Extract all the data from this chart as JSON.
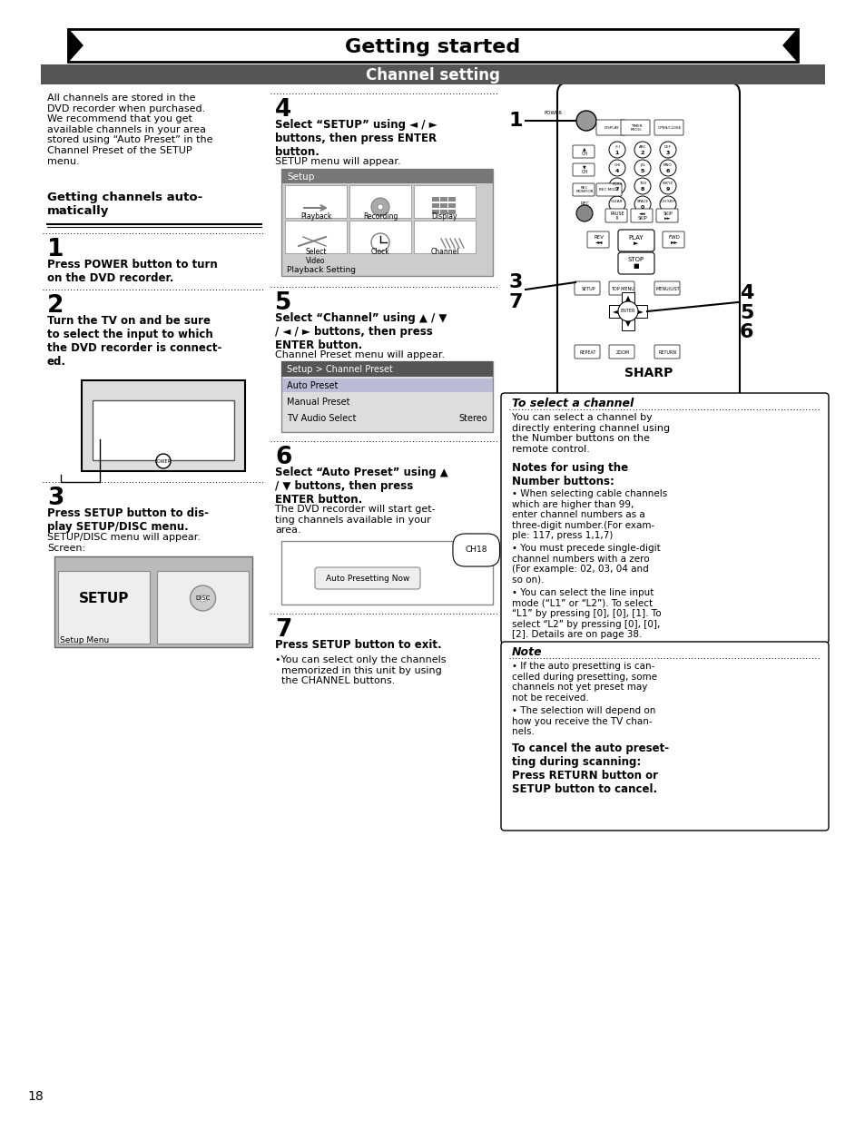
{
  "title": "Getting started",
  "subtitle": "Channel setting",
  "page_number": "18",
  "bg_color": "#ffffff",
  "header_bg": "#555555",
  "header_text_color": "#ffffff",
  "left_col_intro": "All channels are stored in the\nDVD recorder when purchased.\nWe recommend that you get\navailable channels in your area\nstored using “Auto Preset” in the\nChannel Preset of the SETUP\nmenu.",
  "getting_channels_title": "Getting channels auto-\nmatically",
  "step1_num": "1",
  "step1_text": "Press POWER button to turn\non the DVD recorder.",
  "step2_num": "2",
  "step2_text": "Turn the TV on and be sure\nto select the input to which\nthe DVD recorder is connect-\ned.",
  "step3_num": "3",
  "step3_text": "Press SETUP button to dis-\nplay SETUP/DISC menu.",
  "step3_sub": "SETUP/DISC menu will appear.\nScreen:",
  "step4_num": "4",
  "step4_text": "Select “SETUP” using ◄ / ►\nbuttons, then press ENTER\nbutton.",
  "step4_sub": "SETUP menu will appear.",
  "step5_num": "5",
  "step5_text": "Select “Channel” using ▲ / ▼\n/ ◄ / ► buttons, then press\nENTER button.",
  "step5_sub": "Channel Preset menu will appear.",
  "step6_num": "6",
  "step6_text": "Select “Auto Preset” using ▲\n/ ▼ buttons, then press\nENTER button.",
  "step6_sub": "The DVD recorder will start get-\nting channels available in your\narea.",
  "step7_num": "7",
  "step7_text": "Press SETUP button to exit.",
  "step7_sub": "•You can select only the channels\n  memorized in this unit by using\n  the CHANNEL buttons.",
  "select_channel_title": "To select a channel",
  "select_channel_text": "You can select a channel by\ndirectly entering channel using\nthe Number buttons on the\nremote control.",
  "notes_title": "Notes for using the\nNumber buttons:",
  "notes_bullets": [
    "When selecting cable channels\nwhich are higher than 99,\nenter channel numbers as a\nthree-digit number.(For exam-\nple: 117, press 1,1,7)",
    "You must precede single-digit\nchannel numbers with a zero\n(For example: 02, 03, 04 and\nso on).",
    "You can select the line input\nmode (“L1” or “L2”). To select\n“L1” by pressing [0], [0], [1]. To\nselect “L2” by pressing [0], [0],\n[2]. Details are on page 38."
  ],
  "note_title": "Note",
  "note_bullets": [
    "If the auto presetting is can-\ncelled during presetting, some\nchannels not yet preset may\nnot be received.",
    "The selection will depend on\nhow you receive the TV chan-\nnels."
  ],
  "note_bold_text": "To cancel the auto preset-\nting during scanning:\nPress RETURN button or\nSETUP button to cancel.",
  "channel_preset_items": [
    "Setup > Channel Preset",
    "Auto Preset",
    "Manual Preset",
    "TV Audio Select",
    "Stereo"
  ]
}
